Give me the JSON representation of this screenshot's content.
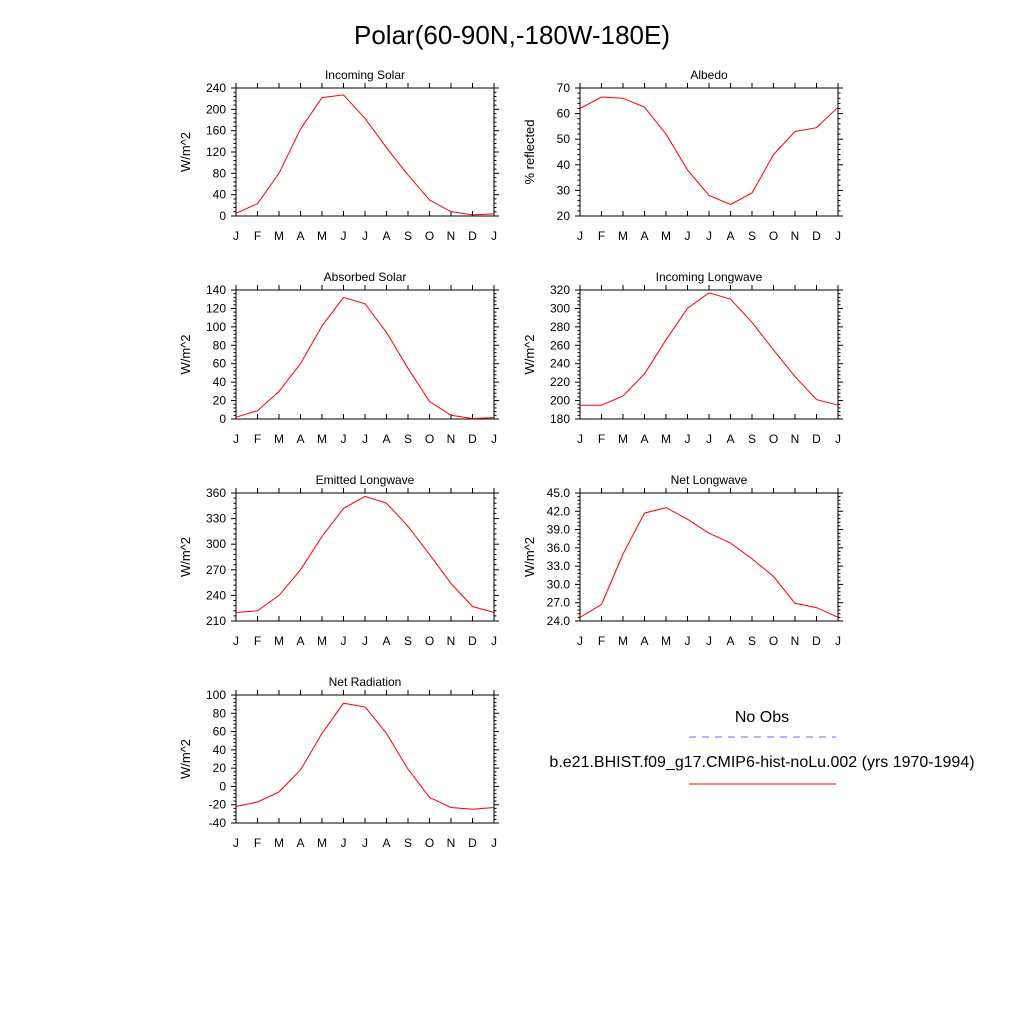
{
  "title": "Polar(60-90N,-180W-180E)",
  "colors": {
    "model": "#ff0000",
    "obs": "#6a6aff"
  },
  "legend": {
    "obs_label": "No Obs",
    "model_label": "b.e21.BHIST.f09_g17.CMIP6-hist-noLu.002 (yrs 1970-1994)"
  },
  "chart_data": [
    {
      "type": "line",
      "title": "Incoming Solar",
      "ylabel": "W/m^2",
      "categories": [
        "J",
        "F",
        "M",
        "A",
        "M",
        "J",
        "J",
        "A",
        "S",
        "O",
        "N",
        "D",
        "J"
      ],
      "ylim": [
        0,
        240
      ],
      "yticks": [
        0,
        40,
        80,
        120,
        160,
        200,
        240
      ],
      "ytick_labels": [
        "0",
        "40",
        "80",
        "120",
        "160",
        "200",
        "240"
      ],
      "series": [
        {
          "values": [
            5,
            23,
            80,
            163,
            222,
            227,
            183,
            128,
            77,
            30,
            8,
            2,
            4
          ]
        }
      ]
    },
    {
      "type": "line",
      "title": "Albedo",
      "ylabel": "% reflected",
      "categories": [
        "J",
        "F",
        "M",
        "A",
        "M",
        "J",
        "J",
        "A",
        "S",
        "O",
        "N",
        "D",
        "J"
      ],
      "ylim": [
        20,
        70
      ],
      "yticks": [
        20,
        30,
        40,
        50,
        60,
        70
      ],
      "ytick_labels": [
        "20",
        "30",
        "40",
        "50",
        "60",
        "70"
      ],
      "series": [
        {
          "values": [
            62,
            66.5,
            66,
            62.5,
            52,
            38,
            28,
            24.5,
            29,
            44,
            53,
            54.5,
            62.5
          ]
        }
      ]
    },
    {
      "type": "line",
      "title": "Absorbed Solar",
      "ylabel": "W/m^2",
      "categories": [
        "J",
        "F",
        "M",
        "A",
        "M",
        "J",
        "J",
        "A",
        "S",
        "O",
        "N",
        "D",
        "J"
      ],
      "ylim": [
        0,
        140
      ],
      "yticks": [
        0,
        20,
        40,
        60,
        80,
        100,
        120,
        140
      ],
      "ytick_labels": [
        "0",
        "20",
        "40",
        "60",
        "80",
        "100",
        "120",
        "140"
      ],
      "series": [
        {
          "values": [
            2,
            9,
            30,
            60,
            101,
            132,
            125,
            94,
            55,
            19,
            4,
            0.5,
            1.5
          ]
        }
      ]
    },
    {
      "type": "line",
      "title": "Incoming Longwave",
      "ylabel": "W/m^2",
      "categories": [
        "J",
        "F",
        "M",
        "A",
        "M",
        "J",
        "J",
        "A",
        "S",
        "O",
        "N",
        "D",
        "J"
      ],
      "ylim": [
        180,
        320
      ],
      "yticks": [
        180,
        200,
        220,
        240,
        260,
        280,
        300,
        320
      ],
      "ytick_labels": [
        "180",
        "200",
        "220",
        "240",
        "260",
        "280",
        "300",
        "320"
      ],
      "series": [
        {
          "values": [
            195,
            195,
            205,
            229,
            266,
            300,
            317,
            310,
            285,
            255,
            226,
            201,
            195
          ]
        }
      ]
    },
    {
      "type": "line",
      "title": "Emitted Longwave",
      "ylabel": "W/m^2",
      "categories": [
        "J",
        "F",
        "M",
        "A",
        "M",
        "J",
        "J",
        "A",
        "S",
        "O",
        "N",
        "D",
        "J"
      ],
      "ylim": [
        210,
        360
      ],
      "yticks": [
        210,
        240,
        270,
        300,
        330,
        360
      ],
      "ytick_labels": [
        "210",
        "240",
        "270",
        "300",
        "330",
        "360"
      ],
      "series": [
        {
          "values": [
            220,
            222,
            240,
            270,
            309,
            342,
            356,
            348,
            321,
            288,
            254,
            227,
            220
          ]
        }
      ]
    },
    {
      "type": "line",
      "title": "Net Longwave",
      "ylabel": "W/m^2",
      "categories": [
        "J",
        "F",
        "M",
        "A",
        "M",
        "J",
        "J",
        "A",
        "S",
        "O",
        "N",
        "D",
        "J"
      ],
      "ylim": [
        24,
        45
      ],
      "yticks": [
        24,
        27,
        30,
        33,
        36,
        39,
        42,
        45
      ],
      "ytick_labels": [
        "24.0",
        "27.0",
        "30.0",
        "33.0",
        "36.0",
        "39.0",
        "42.0",
        "45.0"
      ],
      "series": [
        {
          "values": [
            24.6,
            26.7,
            35,
            41.7,
            42.6,
            40.7,
            38.4,
            36.8,
            34.2,
            31.3,
            26.9,
            26.2,
            24.6
          ]
        }
      ]
    },
    {
      "type": "line",
      "title": "Net Radiation",
      "ylabel": "W/m^2",
      "categories": [
        "J",
        "F",
        "M",
        "A",
        "M",
        "J",
        "J",
        "A",
        "S",
        "O",
        "N",
        "D",
        "J"
      ],
      "ylim": [
        -40,
        100
      ],
      "yticks": [
        -40,
        -20,
        0,
        20,
        40,
        60,
        80,
        100
      ],
      "ytick_labels": [
        "-40",
        "-20",
        "0",
        "20",
        "40",
        "60",
        "80",
        "100"
      ],
      "series": [
        {
          "values": [
            -22,
            -17,
            -6,
            18,
            58,
            91,
            87,
            58,
            19,
            -12,
            -23,
            -25,
            -23
          ]
        }
      ]
    }
  ]
}
